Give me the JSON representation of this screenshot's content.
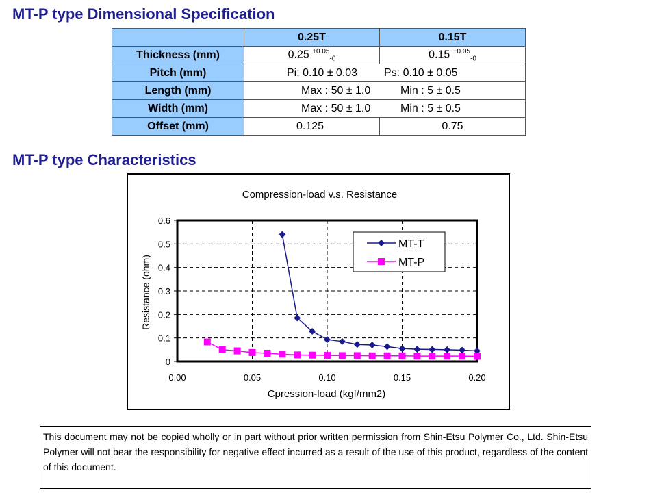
{
  "spec_section": {
    "title": "MT-P type Dimensional Specification",
    "col_headers": [
      "0.25T",
      "0.15T"
    ],
    "rows": {
      "thickness": {
        "label": "Thickness (mm)",
        "v1": "0.25",
        "v1_plus": "+0.05",
        "v1_minus": "-0",
        "v2": "0.15",
        "v2_plus": "+0.05",
        "v2_minus": "-0"
      },
      "pitch": {
        "label": "Pitch (mm)",
        "a": "Pi: 0.10 ± 0.03",
        "b": "Ps: 0.10 ± 0.05"
      },
      "length": {
        "label": "Length (mm)",
        "a": "Max : 50 ± 1.0",
        "b": "Min : 5 ± 0.5"
      },
      "width": {
        "label": "Width (mm)",
        "a": "Max : 50 ± 1.0",
        "b": "Min : 5 ± 0.5"
      },
      "offset": {
        "label": "Offset (mm)",
        "v1": "0.125",
        "v2": "0.75"
      }
    }
  },
  "char_section": {
    "title": "MT-P type Characteristics"
  },
  "chart_data": {
    "type": "line",
    "title": "Compression-load v.s. Resistance",
    "xlabel": "Cpression-load (kgf/mm2)",
    "ylabel": "Resistance (ohm)",
    "xlim": [
      0.0,
      0.2
    ],
    "ylim": [
      0,
      0.6
    ],
    "xticks": [
      "0.00",
      "0.05",
      "0.10",
      "0.15",
      "0.20"
    ],
    "yticks": [
      "0",
      "0.1",
      "0.2",
      "0.3",
      "0.4",
      "0.5",
      "0.6"
    ],
    "grid": true,
    "legend_position": "top-right",
    "series": [
      {
        "name": "MT-T",
        "color": "#1a1a8c",
        "marker": "diamond",
        "x": [
          0.07,
          0.08,
          0.09,
          0.1,
          0.11,
          0.12,
          0.13,
          0.14,
          0.15,
          0.16,
          0.17,
          0.18,
          0.19,
          0.2
        ],
        "y": [
          0.54,
          0.185,
          0.128,
          0.093,
          0.085,
          0.072,
          0.07,
          0.063,
          0.055,
          0.052,
          0.051,
          0.05,
          0.048,
          0.045
        ]
      },
      {
        "name": "MT-P",
        "color": "#ff00ff",
        "marker": "square",
        "x": [
          0.02,
          0.03,
          0.04,
          0.05,
          0.06,
          0.07,
          0.08,
          0.09,
          0.1,
          0.11,
          0.12,
          0.13,
          0.14,
          0.15,
          0.16,
          0.17,
          0.18,
          0.19,
          0.2
        ],
        "y": [
          0.083,
          0.05,
          0.045,
          0.038,
          0.035,
          0.031,
          0.028,
          0.027,
          0.026,
          0.025,
          0.025,
          0.024,
          0.024,
          0.024,
          0.023,
          0.023,
          0.023,
          0.023,
          0.022
        ]
      }
    ]
  },
  "notice": {
    "text": "This document may not be copied wholly or in part without prior written permission from Shin-Etsu Polymer Co., Ltd.  Shin-Etsu Polymer will not bear the responsibility for negative effect incurred as a result of the use of this product, regardless of the content of this document."
  }
}
